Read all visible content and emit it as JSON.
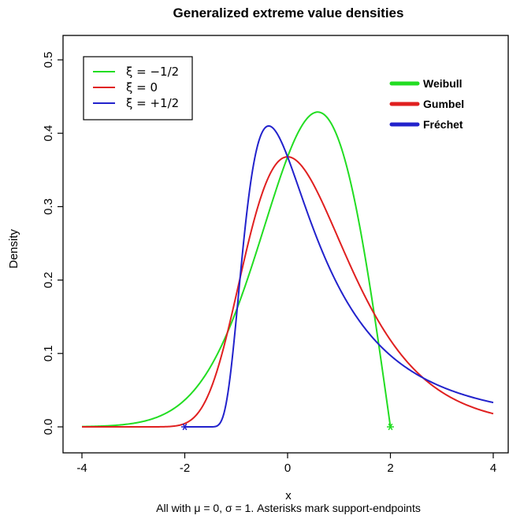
{
  "chart_data": {
    "type": "line",
    "title": "Generalized extreme value densities",
    "xlabel": "x",
    "ylabel": "Density",
    "caption": "All with μ = 0, σ = 1. Asterisks mark support-endpoints",
    "xlim": [
      -4,
      4
    ],
    "ylim": [
      0,
      0.5
    ],
    "xticks": [
      "-4",
      "-2",
      "0",
      "2",
      "4"
    ],
    "yticks": [
      "0.0",
      "0.1",
      "0.2",
      "0.3",
      "0.4",
      "0.5"
    ],
    "grid": false,
    "series": [
      {
        "name": "ξ = −1/2",
        "color": "#22dd22",
        "shape": "GEV xi=-0.5",
        "x": [
          -4,
          -3.5,
          -3,
          -2.5,
          -2,
          -1.5,
          -1,
          -0.5,
          0,
          0.3,
          0.6,
          0.9,
          1.2,
          1.5,
          1.75,
          2
        ],
        "y": [
          0.003,
          0.008,
          0.016,
          0.031,
          0.056,
          0.093,
          0.148,
          0.229,
          0.33,
          0.394,
          0.429,
          0.425,
          0.378,
          0.281,
          0.167,
          0.0
        ]
      },
      {
        "name": "ξ = 0",
        "color": "#e02020",
        "shape": "Gumbel",
        "x": [
          -4,
          -3,
          -2.5,
          -2,
          -1.5,
          -1,
          -0.5,
          0,
          0.5,
          1,
          1.5,
          2,
          2.5,
          3,
          3.5,
          4
        ],
        "y": [
          0.0,
          0.0,
          0.0,
          0.005,
          0.029,
          0.179,
          0.32,
          0.368,
          0.33,
          0.254,
          0.179,
          0.118,
          0.076,
          0.047,
          0.029,
          0.018
        ]
      },
      {
        "name": "ξ = +1/2",
        "color": "#2222cc",
        "shape": "GEV xi=+0.5",
        "x": [
          -4,
          -2,
          -1.5,
          -1.2,
          -1,
          -0.8,
          -0.6,
          -0.4,
          -0.2,
          0,
          0.5,
          1,
          1.5,
          2,
          3,
          4
        ],
        "y": [
          0.0,
          0.0,
          0.0,
          0.052,
          0.135,
          0.272,
          0.372,
          0.41,
          0.39,
          0.368,
          0.273,
          0.198,
          0.146,
          0.11,
          0.064,
          0.039
        ]
      }
    ],
    "endpoints": [
      {
        "x": -2,
        "y": 0,
        "color": "#2222cc"
      },
      {
        "x": 2,
        "y": 0,
        "color": "#22dd22"
      }
    ],
    "legend": {
      "placement": "top-left",
      "entries": [
        {
          "label": "ξ = −1/2",
          "color": "#22dd22"
        },
        {
          "label": "ξ = 0",
          "color": "#e02020"
        },
        {
          "label": "ξ = +1/2",
          "color": "#2222cc"
        }
      ]
    },
    "legend2": {
      "placement": "top-right",
      "entries": [
        {
          "label": "Weibull",
          "color": "#22dd22"
        },
        {
          "label": "Gumbel",
          "color": "#e02020"
        },
        {
          "label": "Fréchet",
          "color": "#2222cc"
        }
      ]
    }
  }
}
